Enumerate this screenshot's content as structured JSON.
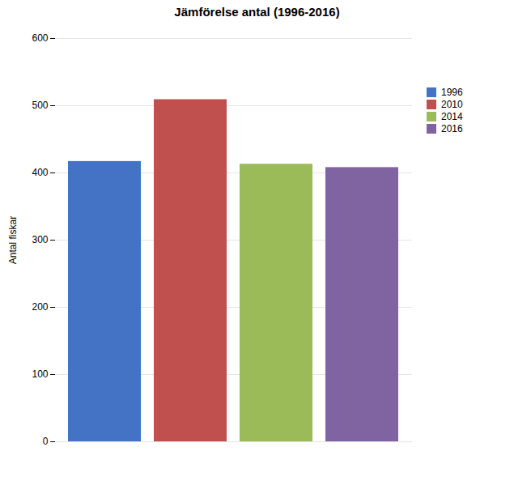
{
  "chart_data": {
    "type": "bar",
    "title": "Jämförelse antal (1996-2016)",
    "ylabel": "Antal fiskar",
    "categories": [
      "1996",
      "2010",
      "2014",
      "2016"
    ],
    "values": [
      417,
      509,
      413,
      408
    ],
    "colors": [
      "#4472C4",
      "#C0504D",
      "#9BBB59",
      "#8064A2"
    ],
    "ylim": [
      0,
      600
    ],
    "yticks": [
      0,
      100,
      200,
      300,
      400,
      500,
      600
    ],
    "grid": true,
    "legend": "right",
    "tick_labels": "y"
  }
}
